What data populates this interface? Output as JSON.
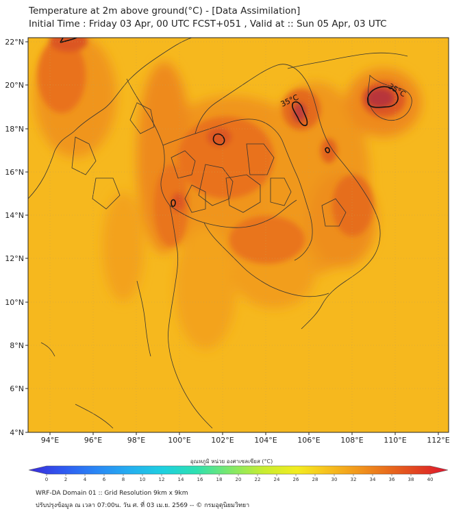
{
  "header": {
    "title_line1": "Temperature at 2m above ground(°C) - [Data Assimilation]",
    "title_line2": "Initial Time : Friday 03 Apr, 00 UTC FCST+051 , Valid at :: Sun 05 Apr, 03 UTC"
  },
  "map": {
    "lat_ticks": [
      "4°N",
      "6°N",
      "8°N",
      "10°N",
      "12°N",
      "14°N",
      "16°N",
      "18°N",
      "20°N",
      "22°N"
    ],
    "lon_ticks": [
      "94°E",
      "96°E",
      "98°E",
      "100°E",
      "102°E",
      "104°E",
      "106°E",
      "108°E",
      "110°E",
      "112°E"
    ],
    "contour_labels": [
      "35°C",
      "35°C"
    ],
    "colors": {
      "cool": "#f6b81e",
      "mid": "#f4a01c",
      "warm": "#ec7a1c",
      "hot": "#dc5a26",
      "very_hot": "#b8303a",
      "border": "#333333"
    }
  },
  "colorbar": {
    "title": "อุณหภูมิ หน่วย องศาเซลเซียส (°C)",
    "ticks": [
      "0",
      "2",
      "4",
      "6",
      "8",
      "10",
      "12",
      "14",
      "16",
      "18",
      "20",
      "22",
      "24",
      "26",
      "28",
      "30",
      "32",
      "34",
      "36",
      "38",
      "40"
    ],
    "colors": [
      "#3a2bd8",
      "#2f58f0",
      "#2a86f5",
      "#25aef0",
      "#1ed0e0",
      "#2ee0b0",
      "#7ee86a",
      "#c8ec30",
      "#f2ec20",
      "#f7c81e",
      "#f29a1c",
      "#e86a1c",
      "#e03a22",
      "#e01530"
    ]
  },
  "footer": {
    "line1": "WRF-DA Domain 01 :: Grid Resolution 9km x 9km",
    "line2": "ปรับปรุงข้อมูล ณ เวลา 07:00น. วัน ศ. ที่ 03 เม.ย. 2569 -- © กรมอุตุนิยมวิทยา"
  }
}
